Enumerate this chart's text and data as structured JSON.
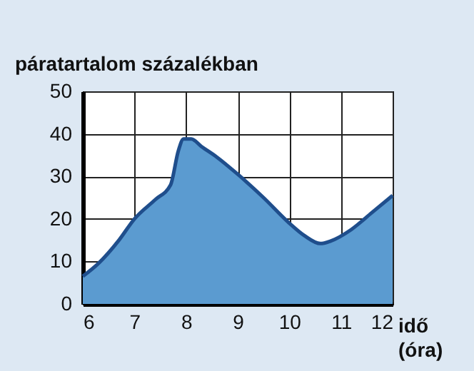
{
  "chart_data": {
    "type": "area",
    "ylabel": "páratartalom százalékban",
    "xlabel": "idő (óra)",
    "x": [
      6,
      6.3,
      6.7,
      7,
      7.4,
      7.7,
      7.85,
      7.95,
      8.1,
      8.3,
      8.6,
      9,
      9.5,
      10,
      10.3,
      10.6,
      10.8,
      11.2,
      11.6,
      12
    ],
    "series": [
      {
        "color": "#5b9bd0",
        "values": [
          6.5,
          9.5,
          15,
          20,
          24.5,
          28,
          36,
          38.8,
          38.8,
          37,
          34.5,
          30.5,
          25,
          19,
          16,
          14.2,
          14.8,
          17.5,
          21.5,
          25.5
        ]
      }
    ],
    "xlim": [
      6,
      12
    ],
    "xticks": [
      6,
      7,
      8,
      9,
      10,
      11,
      12
    ],
    "ylim": [
      0,
      50
    ],
    "yticks": [
      0,
      10,
      20,
      30,
      40,
      50
    ],
    "grid": true
  }
}
